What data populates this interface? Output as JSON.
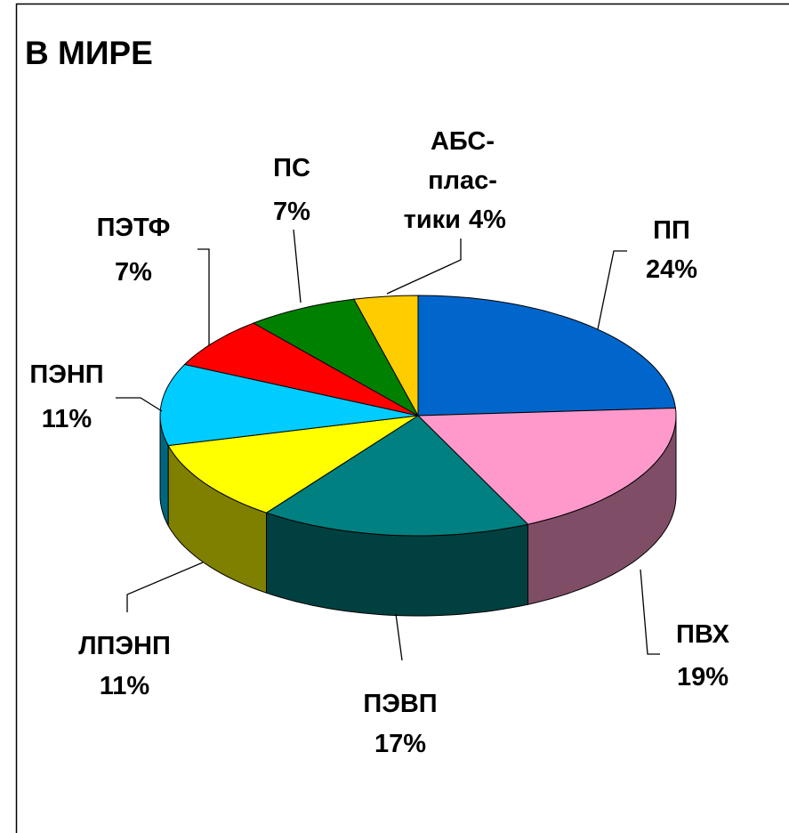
{
  "chart_data": {
    "type": "pie3d",
    "title": "В МИРЕ",
    "categories": [
      "ПП",
      "ПВХ",
      "ПЭВП",
      "ЛПЭНП",
      "ПЭНП",
      "ПЭТФ",
      "ПС",
      "АБС-плас-тики"
    ],
    "values": [
      24,
      19,
      17,
      11,
      11,
      7,
      7,
      4
    ],
    "value_labels": [
      "24%",
      "19%",
      "17%",
      "11%",
      "11%",
      "7%",
      "7%",
      "4%"
    ],
    "colors": [
      "#0066cc",
      "#ff99cc",
      "#008080",
      "#ffff00",
      "#00ccff",
      "#ff0000",
      "#008000",
      "#ffcc00"
    ]
  }
}
